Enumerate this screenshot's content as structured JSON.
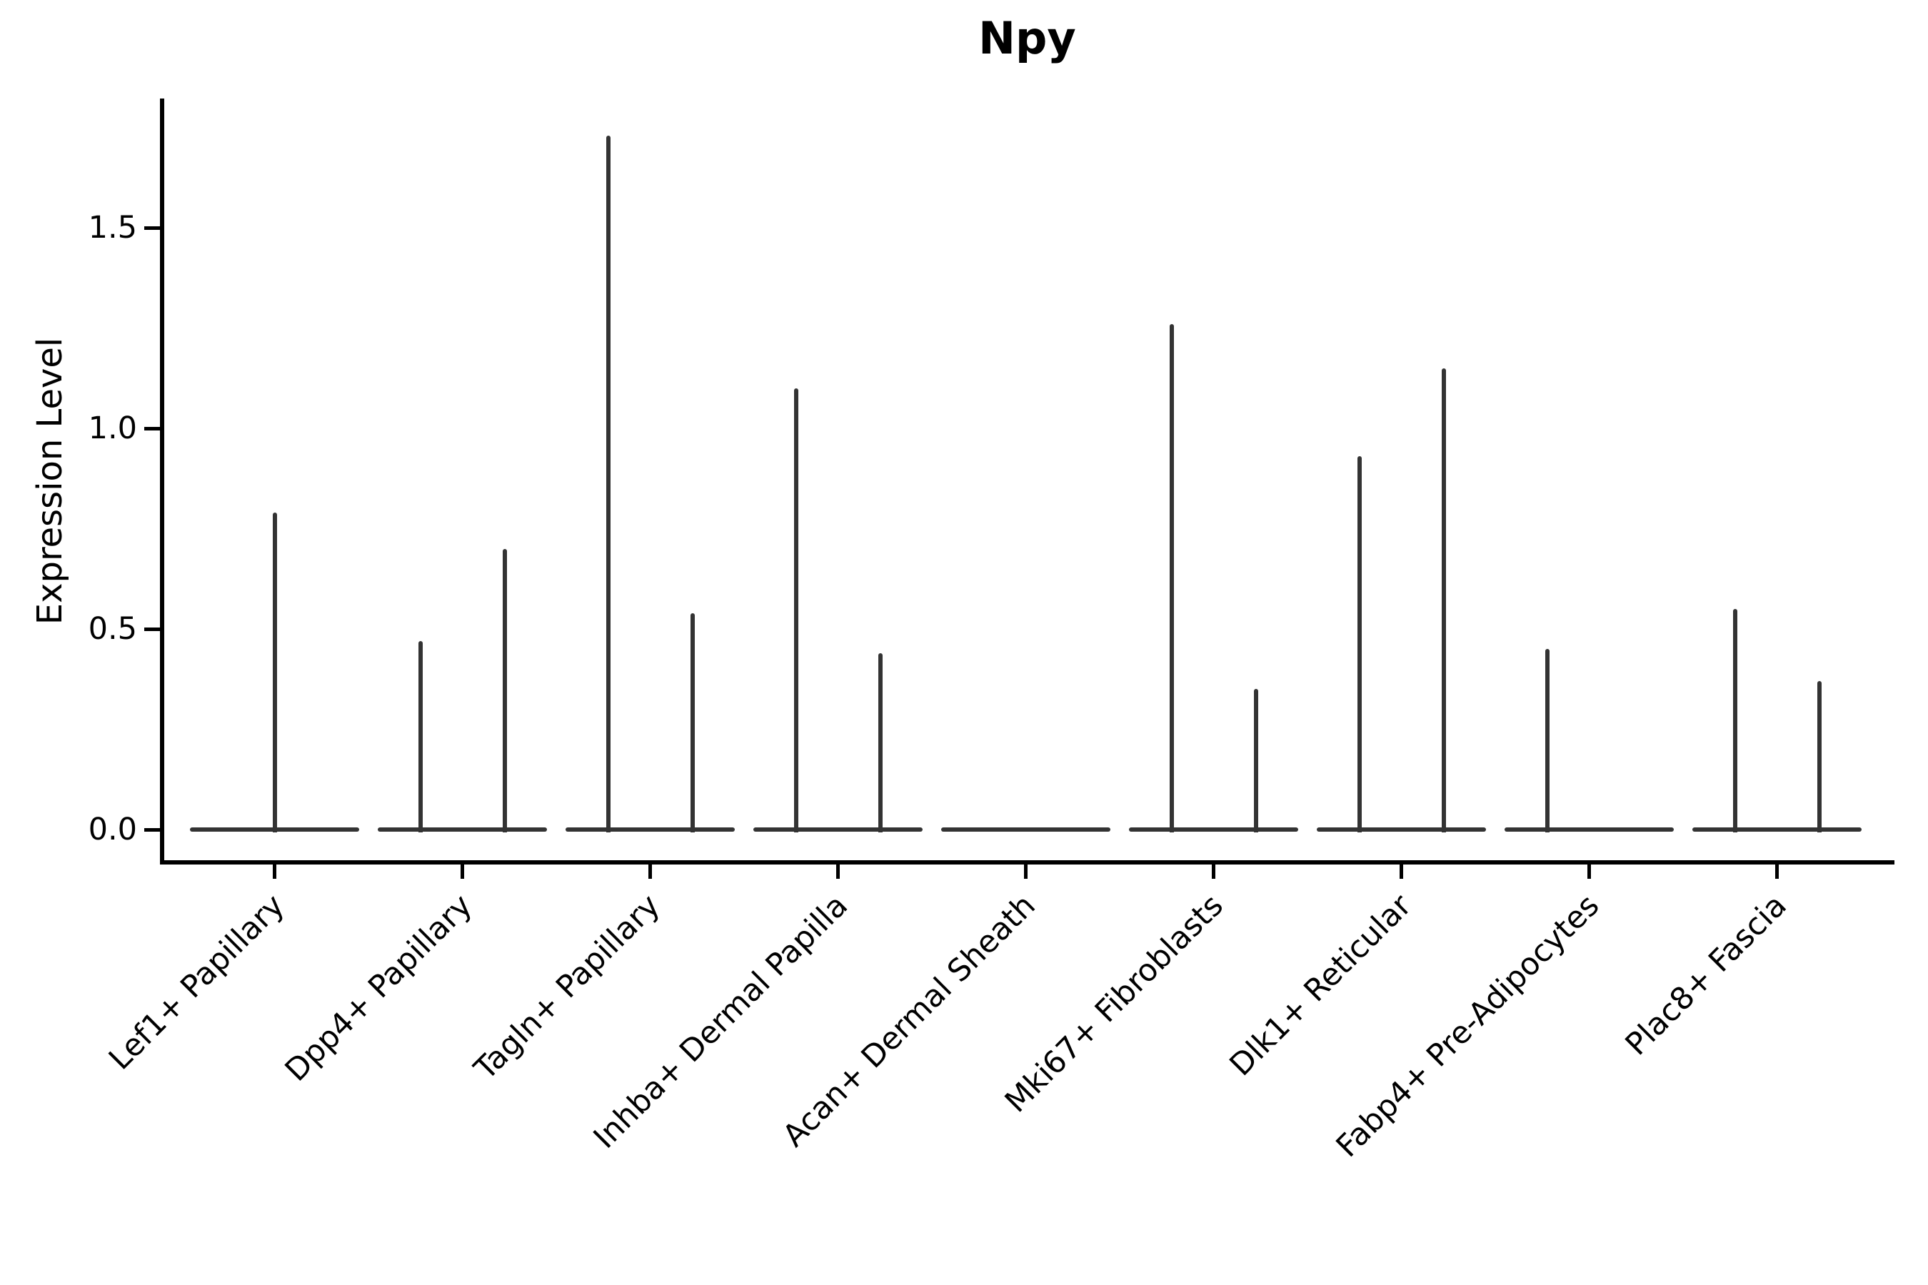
{
  "chart_data": {
    "type": "violin",
    "title": "Npy",
    "ylabel": "Expression Level",
    "xlabel": "",
    "ylim": [
      -0.09,
      1.82
    ],
    "ytick_values": [
      0.0,
      0.5,
      1.0,
      1.5
    ],
    "ytick_labels": [
      "0.0",
      "0.5",
      "1.0",
      "1.5"
    ],
    "grid": false,
    "legend": false,
    "violin_color": "#333333",
    "axis_color": "#000000",
    "categories": [
      "Lef1+ Papillary",
      "Dpp4+ Papillary",
      "Tagln+ Papillary",
      "Inhba+ Dermal Papilla",
      "Acan+ Dermal Sheath",
      "Mki67+ Fibroblasts",
      "Dlk1+ Reticular",
      "Fabp4+ Pre-Adipocytes",
      "Plac8+ Fascia"
    ],
    "violins": [
      {
        "category": "Lef1+ Papillary",
        "spikes": [
          {
            "pos": "center",
            "max": 0.79
          }
        ]
      },
      {
        "category": "Dpp4+ Papillary",
        "spikes": [
          {
            "pos": "left",
            "max": 0.47
          },
          {
            "pos": "right",
            "max": 0.7
          }
        ]
      },
      {
        "category": "Tagln+ Papillary",
        "spikes": [
          {
            "pos": "left",
            "max": 1.73
          },
          {
            "pos": "right",
            "max": 0.54
          }
        ]
      },
      {
        "category": "Inhba+ Dermal Papilla",
        "spikes": [
          {
            "pos": "left",
            "max": 1.1
          },
          {
            "pos": "right",
            "max": 0.44
          }
        ]
      },
      {
        "category": "Acan+ Dermal Sheath",
        "spikes": []
      },
      {
        "category": "Mki67+ Fibroblasts",
        "spikes": [
          {
            "pos": "left",
            "max": 1.26
          },
          {
            "pos": "right",
            "max": 0.35
          }
        ]
      },
      {
        "category": "Dlk1+ Reticular",
        "spikes": [
          {
            "pos": "left",
            "max": 0.93
          },
          {
            "pos": "right",
            "max": 1.15
          }
        ]
      },
      {
        "category": "Fabp4+ Pre-Adipocytes",
        "spikes": [
          {
            "pos": "left",
            "max": 0.45
          }
        ]
      },
      {
        "category": "Plac8+ Fascia",
        "spikes": [
          {
            "pos": "left",
            "max": 0.55
          },
          {
            "pos": "right",
            "max": 0.37
          }
        ]
      }
    ]
  }
}
